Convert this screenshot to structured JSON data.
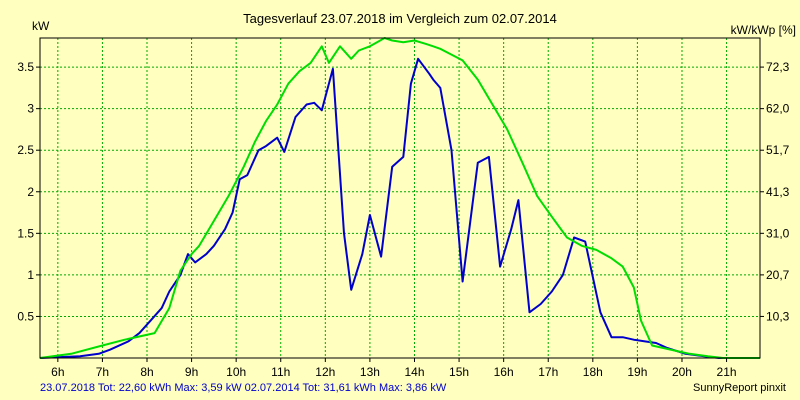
{
  "chart_data": {
    "type": "line",
    "title": "Tagesverlauf 23.07.2018 im Vergleich zum 02.07.2014",
    "ylabel_left": "kW",
    "ylabel_right": "kW/kWp [%]",
    "xlim": [
      5.6,
      21.75
    ],
    "ylim": [
      0,
      3.85
    ],
    "x_ticks": [
      6,
      7,
      8,
      9,
      10,
      11,
      12,
      13,
      14,
      15,
      16,
      17,
      18,
      19,
      20,
      21
    ],
    "x_tick_labels": [
      "6h",
      "7h",
      "8h",
      "9h",
      "10h",
      "11h",
      "12h",
      "13h",
      "14h",
      "15h",
      "16h",
      "17h",
      "18h",
      "19h",
      "20h",
      "21h"
    ],
    "y_ticks_left": [
      0.5,
      1,
      1.5,
      2,
      2.5,
      3,
      3.5
    ],
    "y_tick_labels_left": [
      "0.5",
      "1",
      "1.5",
      "2",
      "2.5",
      "3",
      "3.5"
    ],
    "y_ticks_right": [
      0.5,
      1,
      1.5,
      2,
      2.5,
      3,
      3.5
    ],
    "y_tick_labels_right": [
      "10,3",
      "20,7",
      "31,0",
      "41,3",
      "51,7",
      "62,0",
      "72,3"
    ],
    "grid": true,
    "series": [
      {
        "name": "23.07.2018",
        "color": "#0000cc",
        "x": [
          5.6,
          6.5,
          6.92,
          7.17,
          7.58,
          7.83,
          8.08,
          8.33,
          8.5,
          8.75,
          8.92,
          9.08,
          9.33,
          9.5,
          9.75,
          9.92,
          10.08,
          10.25,
          10.5,
          10.67,
          10.92,
          11.08,
          11.33,
          11.58,
          11.75,
          11.92,
          12.17,
          12.42,
          12.58,
          12.83,
          13.0,
          13.25,
          13.5,
          13.75,
          13.92,
          14.08,
          14.33,
          14.42,
          14.58,
          14.83,
          15.08,
          15.42,
          15.67,
          15.92,
          16.17,
          16.33,
          16.58,
          16.83,
          17.08,
          17.33,
          17.58,
          17.83,
          18.17,
          18.42,
          18.67,
          18.92,
          19.17,
          19.42,
          19.67,
          20.08,
          20.5,
          20.83,
          21.08,
          21.33,
          21.58,
          21.75
        ],
        "y": [
          0.0,
          0.02,
          0.05,
          0.1,
          0.2,
          0.3,
          0.45,
          0.6,
          0.8,
          1.0,
          1.25,
          1.15,
          1.25,
          1.35,
          1.55,
          1.75,
          2.15,
          2.2,
          2.5,
          2.55,
          2.65,
          2.48,
          2.9,
          3.05,
          3.07,
          2.98,
          3.48,
          1.5,
          0.82,
          1.25,
          1.72,
          1.22,
          2.3,
          2.42,
          3.3,
          3.6,
          3.42,
          3.35,
          3.25,
          2.5,
          0.92,
          2.35,
          2.42,
          1.1,
          1.55,
          1.9,
          0.55,
          0.65,
          0.8,
          1.0,
          1.45,
          1.4,
          0.55,
          0.25,
          0.25,
          0.22,
          0.2,
          0.18,
          0.12,
          0.05,
          0.02,
          0.0,
          0.0,
          0.0,
          0.0,
          0.0
        ]
      },
      {
        "name": "02.07.2014",
        "color": "#00dd00",
        "x": [
          5.6,
          6.3,
          7.0,
          7.5,
          8.17,
          8.5,
          8.75,
          9.0,
          9.17,
          9.5,
          9.83,
          10.17,
          10.42,
          10.67,
          10.92,
          11.17,
          11.42,
          11.67,
          11.92,
          12.08,
          12.33,
          12.58,
          12.75,
          13.0,
          13.33,
          13.5,
          13.75,
          14.0,
          14.25,
          14.42,
          14.58,
          14.83,
          15.08,
          15.42,
          15.75,
          16.08,
          16.42,
          16.75,
          17.08,
          17.42,
          17.75,
          18.08,
          18.42,
          18.67,
          18.92,
          19.08,
          19.33,
          19.58,
          19.92,
          20.17,
          20.58,
          20.92,
          21.25,
          21.58,
          21.75
        ],
        "y": [
          0.0,
          0.05,
          0.15,
          0.22,
          0.3,
          0.6,
          1.05,
          1.25,
          1.35,
          1.65,
          1.95,
          2.3,
          2.6,
          2.85,
          3.05,
          3.3,
          3.45,
          3.55,
          3.75,
          3.55,
          3.75,
          3.6,
          3.7,
          3.75,
          3.85,
          3.82,
          3.8,
          3.82,
          3.78,
          3.75,
          3.72,
          3.65,
          3.58,
          3.35,
          3.05,
          2.75,
          2.35,
          1.95,
          1.7,
          1.45,
          1.35,
          1.3,
          1.2,
          1.1,
          0.85,
          0.45,
          0.15,
          0.12,
          0.08,
          0.05,
          0.02,
          0.0,
          0.0,
          0.0,
          0.0
        ]
      }
    ]
  },
  "footer": {
    "left_text": "23.07.2018 Tot: 22,60 kWh Max: 3,59 kW 02.07.2014 Tot: 31,61 kWh Max: 3,86 kW",
    "right_text": "SunnyReport pinxit"
  },
  "colors": {
    "background": "#ffffc0",
    "grid": "#00aa00",
    "footer_text": "#0000cc"
  }
}
